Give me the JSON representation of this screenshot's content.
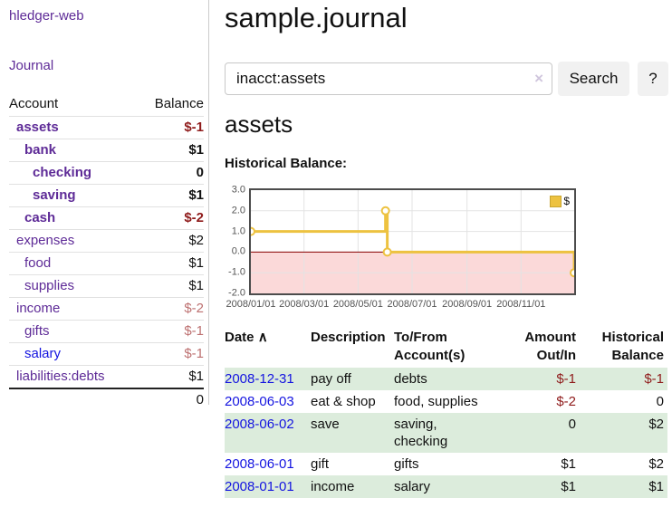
{
  "app": {
    "title": "hledger-web"
  },
  "sidebar": {
    "journal_link": "Journal",
    "table": {
      "account_header": "Account",
      "balance_header": "Balance",
      "rows": [
        {
          "name": "assets",
          "balance": "$-1",
          "level": 1,
          "bold": true,
          "balance_style": "neg-strong",
          "link_color": "purple"
        },
        {
          "name": "bank",
          "balance": "$1",
          "level": 2,
          "bold": true,
          "balance_style": "pos",
          "link_color": "purple"
        },
        {
          "name": "checking",
          "balance": "0",
          "level": 3,
          "bold": true,
          "balance_style": "pos",
          "link_color": "purple"
        },
        {
          "name": "saving",
          "balance": "$1",
          "level": 3,
          "bold": true,
          "balance_style": "pos",
          "link_color": "purple"
        },
        {
          "name": "cash",
          "balance": "$-2",
          "level": 2,
          "bold": true,
          "balance_style": "neg-strong",
          "link_color": "purple"
        },
        {
          "name": "expenses",
          "balance": "$2",
          "level": 1,
          "bold": false,
          "balance_style": "pos",
          "link_color": "purple"
        },
        {
          "name": "food",
          "balance": "$1",
          "level": 2,
          "bold": false,
          "balance_style": "pos",
          "link_color": "purple"
        },
        {
          "name": "supplies",
          "balance": "$1",
          "level": 2,
          "bold": false,
          "balance_style": "pos",
          "link_color": "purple"
        },
        {
          "name": "income",
          "balance": "$-2",
          "level": 1,
          "bold": false,
          "balance_style": "neg-muted",
          "link_color": "purple"
        },
        {
          "name": "gifts",
          "balance": "$-1",
          "level": 2,
          "bold": false,
          "balance_style": "neg-muted",
          "link_color": "purple"
        },
        {
          "name": "salary",
          "balance": "$-1",
          "level": 2,
          "bold": false,
          "balance_style": "neg-muted",
          "link_color": "blue"
        },
        {
          "name": "liabilities:debts",
          "balance": "$1",
          "level": 1,
          "bold": false,
          "balance_style": "pos",
          "link_color": "purple"
        }
      ],
      "total": "0"
    }
  },
  "header": {
    "title": "sample.journal"
  },
  "search": {
    "value": "inacct:assets",
    "clear_label": "×",
    "button_label": "Search",
    "help_label": "?"
  },
  "account_page": {
    "title": "assets",
    "chart_label": "Historical Balance:"
  },
  "chart_data": {
    "type": "line",
    "step": true,
    "series": [
      {
        "name": "$",
        "color": "#EDC240",
        "points": [
          [
            "2008-01-01",
            1
          ],
          [
            "2008-06-01",
            2
          ],
          [
            "2008-06-03",
            0
          ],
          [
            "2008-12-31",
            -1
          ]
        ]
      }
    ],
    "x_ticks": [
      "2008/01/01",
      "2008/03/01",
      "2008/05/01",
      "2008/07/01",
      "2008/09/01",
      "2008/11/01"
    ],
    "y_ticks": [
      "3.0",
      "2.0",
      "1.0",
      "0.0",
      "-1.0",
      "-2.0"
    ],
    "xlim": [
      "2008-01-01",
      "2008-12-31"
    ],
    "ylim": [
      -2,
      3
    ],
    "grid": true,
    "legend_position": "top-right",
    "negative_region_color": "#fbd9d9",
    "zero_line_color": "#8b0000",
    "gridline_color": "#e3e3e3"
  },
  "register": {
    "columns": [
      "Date",
      "Description",
      "To/From Account(s)",
      "Amount Out/In",
      "Historical Balance"
    ],
    "sort_icon": "∧",
    "rows": [
      {
        "date": "2008-12-31",
        "description": "pay off",
        "to_from": "debts",
        "amount": "$-1",
        "amount_style": "neg",
        "balance": "$-1",
        "balance_style": "neg"
      },
      {
        "date": "2008-06-03",
        "description": "eat & shop",
        "to_from": "food, supplies",
        "amount": "$-2",
        "amount_style": "neg",
        "balance": "0",
        "balance_style": "pos"
      },
      {
        "date": "2008-06-02",
        "description": "save",
        "to_from": "saving,\nchecking",
        "amount": "0",
        "amount_style": "pos",
        "balance": "$2",
        "balance_style": "pos"
      },
      {
        "date": "2008-06-01",
        "description": "gift",
        "to_from": "gifts",
        "amount": "$1",
        "amount_style": "pos",
        "balance": "$2",
        "balance_style": "pos"
      },
      {
        "date": "2008-01-01",
        "description": "income",
        "to_from": "salary",
        "amount": "$1",
        "amount_style": "pos",
        "balance": "$1",
        "balance_style": "pos"
      }
    ]
  },
  "colors": {
    "link_purple": "#5e2b97",
    "link_blue": "#1414e0",
    "negative_strong": "#8f1b1b",
    "negative_muted": "#bd7070",
    "row_stripe_green": "#dcecdc",
    "chart_line": "#EDC240",
    "chart_negative_fill": "#fbd9d9",
    "chart_zero_line": "#8b0000"
  }
}
